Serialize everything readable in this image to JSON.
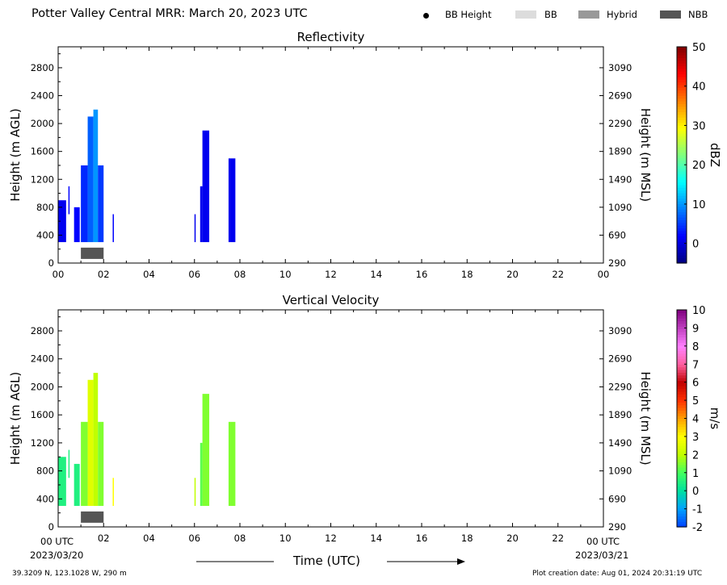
{
  "header": {
    "title": "Potter Valley Central MRR:  March 20, 2023 UTC",
    "legend": [
      {
        "label": "BB Height",
        "kind": "dot",
        "color": "#000000"
      },
      {
        "label": "BB",
        "kind": "swatch",
        "color": "#dcdcdc"
      },
      {
        "label": "Hybrid",
        "kind": "swatch",
        "color": "#999999"
      },
      {
        "label": "NBB",
        "kind": "swatch",
        "color": "#555555"
      }
    ]
  },
  "footer": {
    "location": "39.3209 N, 123.1028 W, 290 m",
    "creation": "Plot creation date: Aug 01, 2024 20:31:19 UTC",
    "xlabel": "Time (UTC)",
    "start_time": "00 UTC",
    "start_date": "2023/03/20",
    "end_time": "00 UTC",
    "end_date": "2023/03/21"
  },
  "chart_data": [
    {
      "type": "heatmap",
      "title": "Reflectivity",
      "ylabel": "Height (m AGL)",
      "ylabel_right": "Height (m MSL)",
      "colorbar_label": "dBZ",
      "xlim": [
        0,
        24
      ],
      "ylim": [
        0,
        3100
      ],
      "x_ticks": [
        "00",
        "02",
        "04",
        "06",
        "08",
        "10",
        "12",
        "14",
        "16",
        "18",
        "20",
        "22",
        "00"
      ],
      "y_ticks": [
        0,
        400,
        800,
        1200,
        1600,
        2000,
        2400,
        2800
      ],
      "y_ticks_right": [
        290,
        690,
        1090,
        1490,
        1890,
        2290,
        2690,
        3090
      ],
      "colorbar": {
        "min": -5,
        "max": 50,
        "ticks": [
          0,
          10,
          20,
          30,
          40,
          50
        ],
        "colors": [
          "#00007f",
          "#0000ff",
          "#007fff",
          "#00ffff",
          "#7fff7f",
          "#ffff00",
          "#ff7f00",
          "#ff0000",
          "#7f0000"
        ]
      },
      "bright_band": [
        {
          "start": 1.0,
          "end": 2.0,
          "height": 140,
          "type": "NBB"
        }
      ],
      "echoes": [
        {
          "start": 0.0,
          "end": 0.35,
          "base": 300,
          "top": 900,
          "value": 1
        },
        {
          "start": 0.45,
          "end": 0.5,
          "base": 700,
          "top": 1100,
          "value": 2
        },
        {
          "start": 0.7,
          "end": 0.95,
          "base": 300,
          "top": 800,
          "value": 2
        },
        {
          "start": 1.0,
          "end": 1.3,
          "base": 300,
          "top": 1400,
          "value": 4
        },
        {
          "start": 1.3,
          "end": 1.55,
          "base": 300,
          "top": 2100,
          "value": 7
        },
        {
          "start": 1.55,
          "end": 1.75,
          "base": 300,
          "top": 2200,
          "value": 10
        },
        {
          "start": 1.75,
          "end": 2.0,
          "base": 300,
          "top": 1400,
          "value": 5
        },
        {
          "start": 2.4,
          "end": 2.45,
          "base": 300,
          "top": 700,
          "value": 2
        },
        {
          "start": 6.0,
          "end": 6.05,
          "base": 300,
          "top": 700,
          "value": 1
        },
        {
          "start": 6.25,
          "end": 6.35,
          "base": 300,
          "top": 1100,
          "value": 1
        },
        {
          "start": 6.35,
          "end": 6.65,
          "base": 300,
          "top": 1900,
          "value": 1
        },
        {
          "start": 7.5,
          "end": 7.8,
          "base": 300,
          "top": 1500,
          "value": 1
        }
      ]
    },
    {
      "type": "heatmap",
      "title": "Vertical Velocity",
      "ylabel": "Height (m AGL)",
      "ylabel_right": "Height (m MSL)",
      "colorbar_label": "m/s",
      "xlim": [
        0,
        24
      ],
      "ylim": [
        0,
        3100
      ],
      "x_ticks": [
        "00 UTC",
        "02",
        "04",
        "06",
        "08",
        "10",
        "12",
        "14",
        "16",
        "18",
        "20",
        "22",
        "00 UTC"
      ],
      "y_ticks": [
        0,
        400,
        800,
        1200,
        1600,
        2000,
        2400,
        2800
      ],
      "y_ticks_right": [
        290,
        690,
        1090,
        1490,
        1890,
        2290,
        2690,
        3090
      ],
      "colorbar": {
        "min": -2,
        "max": 10,
        "ticks": [
          -2,
          -1,
          0,
          1,
          2,
          3,
          4,
          5,
          6,
          7,
          8,
          9,
          10
        ],
        "colors": [
          "#0040ff",
          "#00a0ff",
          "#00e0a0",
          "#40ff60",
          "#c0ff00",
          "#ffff00",
          "#ffa000",
          "#ff3000",
          "#c00000",
          "#ff60a0",
          "#ff80ff",
          "#c040c0",
          "#800080"
        ]
      },
      "bright_band": [
        {
          "start": 1.0,
          "end": 2.0,
          "height": 140,
          "type": "NBB"
        }
      ],
      "echoes": [
        {
          "start": 0.0,
          "end": 0.35,
          "base": 300,
          "top": 1000,
          "value": 0.5
        },
        {
          "start": 0.45,
          "end": 0.5,
          "base": 700,
          "top": 1100,
          "value": 0.5
        },
        {
          "start": 0.7,
          "end": 0.95,
          "base": 300,
          "top": 900,
          "value": 0.5
        },
        {
          "start": 1.0,
          "end": 1.3,
          "base": 300,
          "top": 1500,
          "value": 1.5
        },
        {
          "start": 1.3,
          "end": 1.55,
          "base": 300,
          "top": 2100,
          "value": 2.5
        },
        {
          "start": 1.55,
          "end": 1.75,
          "base": 300,
          "top": 2200,
          "value": 2
        },
        {
          "start": 1.75,
          "end": 2.0,
          "base": 300,
          "top": 1500,
          "value": 1.5
        },
        {
          "start": 2.4,
          "end": 2.45,
          "base": 300,
          "top": 700,
          "value": 3
        },
        {
          "start": 6.0,
          "end": 6.05,
          "base": 300,
          "top": 700,
          "value": 2
        },
        {
          "start": 6.25,
          "end": 6.35,
          "base": 300,
          "top": 1200,
          "value": 1.2
        },
        {
          "start": 6.35,
          "end": 6.65,
          "base": 300,
          "top": 1900,
          "value": 1.5
        },
        {
          "start": 7.5,
          "end": 7.8,
          "base": 300,
          "top": 1500,
          "value": 1.5
        }
      ]
    }
  ]
}
